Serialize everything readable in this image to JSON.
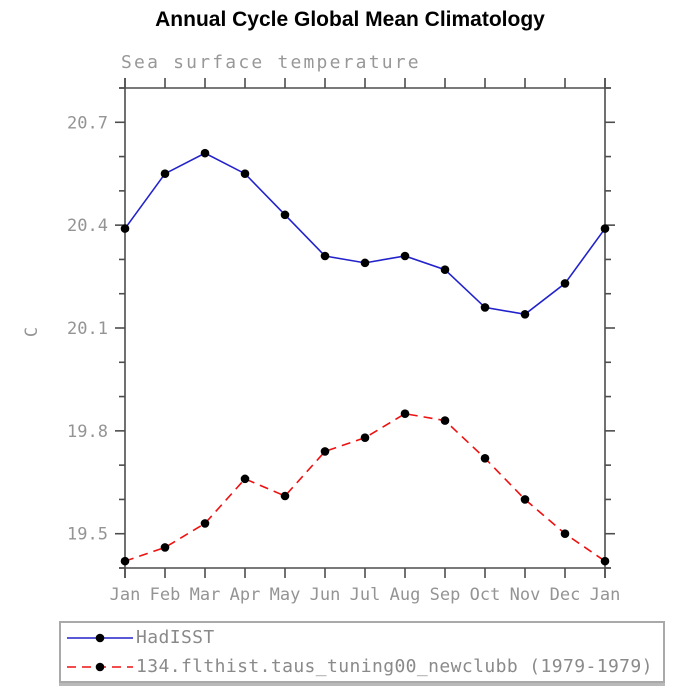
{
  "chart_data": {
    "type": "line",
    "title": "Annual Cycle Global Mean Climatology",
    "subtitle": "Sea surface temperature",
    "ylabel": "C",
    "x_categories": [
      "Jan",
      "Feb",
      "Mar",
      "Apr",
      "May",
      "Jun",
      "Jul",
      "Aug",
      "Sep",
      "Oct",
      "Nov",
      "Dec",
      "Jan"
    ],
    "ylim": [
      19.4,
      20.8
    ],
    "ytick_major": [
      19.5,
      19.8,
      20.1,
      20.4,
      20.7
    ],
    "ytick_minor_step": 0.1,
    "grid": false,
    "legend_position": "bottom",
    "series": [
      {
        "name": "HadISST",
        "color": "#2222cc",
        "style": "solid",
        "marker": "circle",
        "marker_color": "#000000",
        "values": [
          20.39,
          20.55,
          20.61,
          20.55,
          20.43,
          20.31,
          20.29,
          20.31,
          20.27,
          20.16,
          20.14,
          20.23,
          20.39
        ]
      },
      {
        "name": "134.flthist.taus_tuning00_newclubb (1979-1979)",
        "color": "#ee1111",
        "style": "dashed",
        "marker": "circle",
        "marker_color": "#000000",
        "values": [
          19.42,
          19.46,
          19.53,
          19.66,
          19.61,
          19.74,
          19.78,
          19.85,
          19.83,
          19.72,
          19.6,
          19.5,
          19.42
        ]
      }
    ]
  },
  "colors": {
    "axis": "#4d4d4d",
    "tick_label": "#949494",
    "subtitle": "#989898",
    "legend_text": "#8a8a8a",
    "legend_border": "#a9a9a9"
  }
}
